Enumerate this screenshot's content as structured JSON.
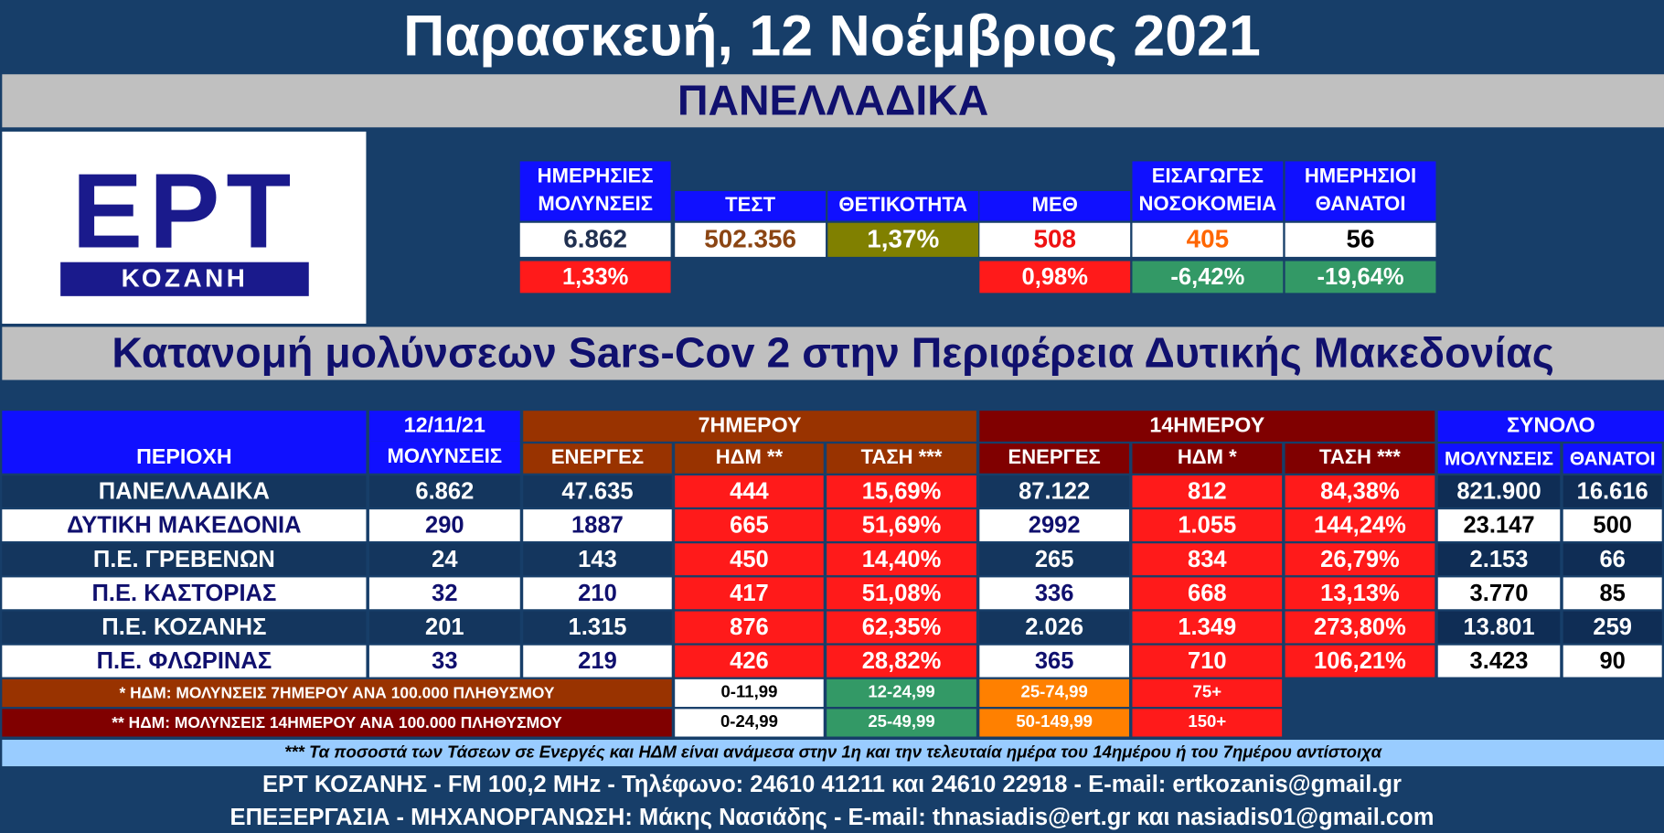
{
  "header": {
    "date": "Παρασκευή, 12 Νοέμβριος 2021",
    "section": "ΠΑΝΕΛΛΑΔΙΚΑ"
  },
  "logo": {
    "brand": "ΕΡΤ",
    "city": "ΚΟΖΑΝΗ"
  },
  "summary": [
    {
      "label": [
        "ΗΜΕΡΗΣΙΕΣ",
        "ΜΟΛΥΝΣΕΙΣ"
      ],
      "value": "6.862",
      "change": "1,33%"
    },
    {
      "label": [
        "ΤΕΣΤ"
      ],
      "value": "502.356"
    },
    {
      "label": [
        "ΘΕΤΙΚΟΤΗΤΑ"
      ],
      "value": "1,37%"
    },
    {
      "label": [
        "ΜΕΘ"
      ],
      "value": "508",
      "change": "0,98%"
    },
    {
      "label": [
        "ΕΙΣΑΓΩΓΕΣ",
        "ΝΟΣΟΚΟΜΕΙΑ"
      ],
      "value": "405",
      "change": "-6,42%"
    },
    {
      "label": [
        "ΗΜΕΡΗΣΙΟΙ",
        "ΘΑΝΑΤΟΙ"
      ],
      "value": "56",
      "change": "-19,64%"
    }
  ],
  "region_title": "Κατανομή μολύνσεων Sars-Cov 2 στην Περιφέρεια Δυτικής Μακεδονίας",
  "table": {
    "header": {
      "region": "ΠΕΡΙΟΧΗ",
      "date": "12/11/21",
      "infections": "ΜΟΛΥΝΣΕΙΣ",
      "week": "7ΗΜΕΡΟΥ",
      "fortnight": "14ΗΜΕΡΟΥ",
      "total": "ΣΥΝΟΛΟ",
      "columns": [
        "ΕΝΕΡΓΕΣ",
        "ΗΔΜ **",
        "ΤΑΣΗ ***",
        "ΕΝΕΡΓΕΣ",
        "ΗΔΜ *",
        "ΤΑΣΗ ***",
        "ΜΟΛΥΝΣΕΙΣ",
        "ΘΑΝΑΤΟΙ"
      ]
    },
    "rows": [
      [
        "ΠΑΝΕΛΛΑΔΙΚΑ",
        "6.862",
        "47.635",
        "444",
        "15,69%",
        "87.122",
        "812",
        "84,38%",
        "821.900",
        "16.616"
      ],
      [
        "ΔΥΤΙΚΗ ΜΑΚΕΔΟΝΙΑ",
        "290",
        "1887",
        "665",
        "51,69%",
        "2992",
        "1.055",
        "144,24%",
        "23.147",
        "500"
      ],
      [
        "Π.Ε. ΓΡΕΒΕΝΩΝ",
        "24",
        "143",
        "450",
        "14,40%",
        "265",
        "834",
        "26,79%",
        "2.153",
        "66"
      ],
      [
        "Π.Ε. ΚΑΣΤΟΡΙΑΣ",
        "32",
        "210",
        "417",
        "51,08%",
        "336",
        "668",
        "13,13%",
        "3.770",
        "85"
      ],
      [
        "Π.Ε. ΚΟΖΑΝΗΣ",
        "201",
        "1.315",
        "876",
        "62,35%",
        "2.026",
        "1.349",
        "273,80%",
        "13.801",
        "259"
      ],
      [
        "Π.Ε. ΦΛΩΡΙΝΑΣ",
        "33",
        "219",
        "426",
        "28,82%",
        "365",
        "710",
        "106,21%",
        "3.423",
        "90"
      ]
    ]
  },
  "legend": [
    {
      "label": "* ΗΔΜ: ΜΟΛΥΝΣΕΙΣ 7ΗΜΕΡΟΥ ΑΝΑ 100.000 ΠΛΗΘΥΣΜΟΥ",
      "ranges": [
        "0-11,99",
        "12-24,99",
        "25-74,99",
        "75+"
      ]
    },
    {
      "label": "** ΗΔΜ: ΜΟΛΥΝΣΕΙΣ 14ΗΜΕΡΟΥ ΑΝΑ 100.000 ΠΛΗΘΥΣΜΟΥ",
      "ranges": [
        "0-24,99",
        "25-49,99",
        "50-149,99",
        "150+"
      ]
    }
  ],
  "footnote": "*** Τα ποσοστά των Τάσεων σε Ενεργές και ΗΔΜ είναι ανάμεσα στην 1η και την τελευταία ημέρα του 14ημέρου ή του 7ημέρου αντίστοιχα",
  "footer": [
    "ΕΡΤ ΚΟΖΑΝΗΣ - FM 100,2 MHz - Τηλέφωνο:  24610 41211 και 24610 22918 - E-mail: ertkozanis@gmail.gr",
    "ΕΠΕΞΕΡΓΑΣΙΑ  -  ΜΗΧΑΝΟΡΓΑΝΩΣΗ: Μάκης Νασιάδης   -   E-mail: thnasiadis@ert.gr και nasiadis01@gmail.com"
  ]
}
